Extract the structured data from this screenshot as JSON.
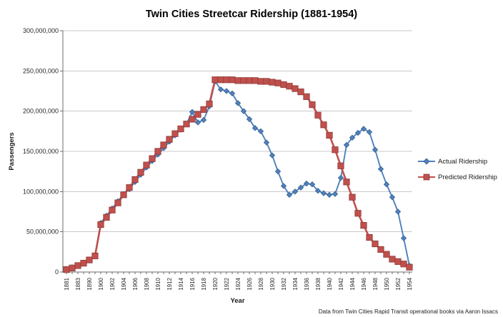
{
  "chart_data": {
    "type": "line",
    "title": "Twin Cities Streetcar Ridership (1881-1954)",
    "xlabel": "Year",
    "ylabel": "Passengers",
    "source_note": "Data from Twin Cities Rapid Transit operational books via Aaron Issacs",
    "ylim": [
      0,
      300000000
    ],
    "ytick_interval": 50000000,
    "ytick_labels": [
      "0",
      "50,000,000",
      "100,000,000",
      "150,000,000",
      "200,000,000",
      "250,000,000",
      "300,000,000"
    ],
    "grid": true,
    "legend_position": "right-middle",
    "xtick_label_every": 2,
    "categories": [
      "1881",
      "1882",
      "1883",
      "1885",
      "1890",
      "1895",
      "1900",
      "1901",
      "1902",
      "1903",
      "1904",
      "1905",
      "1906",
      "1907",
      "1908",
      "1909",
      "1910",
      "1911",
      "1912",
      "1913",
      "1914",
      "1915",
      "1916",
      "1917",
      "1918",
      "1919",
      "1920",
      "1921",
      "1922",
      "1923",
      "1924",
      "1925",
      "1926",
      "1927",
      "1928",
      "1929",
      "1930",
      "1931",
      "1932",
      "1933",
      "1934",
      "1935",
      "1936",
      "1937",
      "1938",
      "1939",
      "1940",
      "1941",
      "1942",
      "1943",
      "1944",
      "1945",
      "1946",
      "1947",
      "1948",
      "1949",
      "1950",
      "1951",
      "1952",
      "1953",
      "1954"
    ],
    "series": [
      {
        "name": "Actual Ridership",
        "marker": "diamond",
        "color": "#4F81BD",
        "marker_stroke": "#38618F",
        "values": [
          4000000,
          6000000,
          8000000,
          11000000,
          15000000,
          21000000,
          61000000,
          70000000,
          79000000,
          88000000,
          97000000,
          103000000,
          112000000,
          121000000,
          130000000,
          138000000,
          146000000,
          154000000,
          162000000,
          170000000,
          177000000,
          184000000,
          199000000,
          186000000,
          189000000,
          206000000,
          237000000,
          227000000,
          225000000,
          222000000,
          210000000,
          200000000,
          190000000,
          179000000,
          175000000,
          161000000,
          145000000,
          125000000,
          107000000,
          96000000,
          100000000,
          105000000,
          110000000,
          109000000,
          101000000,
          98000000,
          96000000,
          97000000,
          117000000,
          158000000,
          167000000,
          173000000,
          178000000,
          174000000,
          152000000,
          128000000,
          109000000,
          93000000,
          75000000,
          42000000,
          8000000
        ]
      },
      {
        "name": "Predicted Ridership",
        "marker": "square",
        "color": "#C0504D",
        "marker_stroke": "#8E3B38",
        "values": [
          3000000,
          5000000,
          8000000,
          11000000,
          15000000,
          20000000,
          59000000,
          68000000,
          77000000,
          86000000,
          96000000,
          105000000,
          115000000,
          124000000,
          133000000,
          141000000,
          150000000,
          158000000,
          165000000,
          172000000,
          178000000,
          184000000,
          190000000,
          196000000,
          202000000,
          209000000,
          239000000,
          239000000,
          239000000,
          239000000,
          238000000,
          238000000,
          238000000,
          238000000,
          237000000,
          237000000,
          236000000,
          235000000,
          233000000,
          231000000,
          228000000,
          224000000,
          218000000,
          208000000,
          195000000,
          183000000,
          170000000,
          152000000,
          132000000,
          112000000,
          93000000,
          73000000,
          58000000,
          43000000,
          35000000,
          28000000,
          22000000,
          16000000,
          13000000,
          10000000,
          6000000
        ]
      }
    ],
    "colors": {
      "gridline": "#C9C9C9",
      "axis": "#6E6E6E",
      "background": "#FFFFFF"
    }
  }
}
